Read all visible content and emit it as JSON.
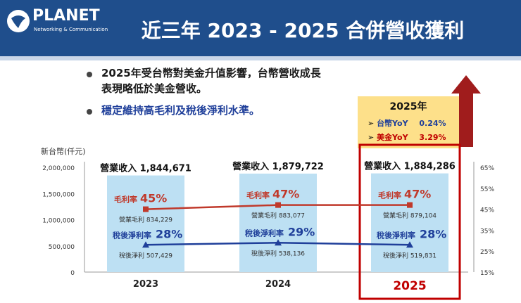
{
  "header": {
    "logo": "PLANET",
    "logo_sub": "Networking & Communication",
    "title": "近三年 2023 - 2025 合併營收獲利"
  },
  "bullets": [
    {
      "line1": "2025年受台幣對美金升值影響，台幣營收成長",
      "line2": "表現略低於美金營收。"
    },
    {
      "line1": "穩定維持高毛利及稅後淨利水準。"
    }
  ],
  "box2025": {
    "title": "2025年",
    "rows": [
      {
        "marker": "➢",
        "label": "台幣YoY",
        "value": "0.24%",
        "color": "#1f3f9a"
      },
      {
        "marker": "➢",
        "label": "美金YoY",
        "value": "3.29%",
        "color": "#c00000"
      }
    ]
  },
  "colors": {
    "header": "#1f4e8c",
    "bar": "#bde0f3",
    "gross_line": "#c0392b",
    "net_line": "#1f3f9a",
    "highlight": "#c00000",
    "box": "#fde08a"
  },
  "chart_data": {
    "type": "bar",
    "y_unit_label": "新台幣(仟元)",
    "categories": [
      "2023",
      "2024",
      "2025"
    ],
    "ylim": [
      0,
      2000000
    ],
    "y_ticks": [
      "2,000,000",
      "1,500,000",
      "1,000,000",
      "500,000",
      "0"
    ],
    "y2lim": [
      15,
      65
    ],
    "y2_ticks": [
      "65%",
      "55%",
      "45%",
      "35%",
      "25%",
      "15%"
    ],
    "revenue": {
      "label": "營業收入",
      "values": [
        1844671,
        1879722,
        1884286
      ],
      "labels": [
        "1,844,671",
        "1,879,722",
        "1,884,286"
      ]
    },
    "gross_margin": {
      "label": "毛利率",
      "pct": [
        45,
        47,
        47
      ],
      "pct_labels": [
        "45%",
        "47%",
        "47%"
      ],
      "amount_label": "營業毛利",
      "amounts": [
        "834,229",
        "883,077",
        "879,104"
      ]
    },
    "net_margin": {
      "label": "稅後淨利率",
      "pct": [
        28,
        29,
        28
      ],
      "pct_labels": [
        "28%",
        "29%",
        "28%"
      ],
      "amount_label": "稅後淨利",
      "amounts": [
        "507,429",
        "538,136",
        "519,831"
      ]
    },
    "highlight_category": "2025",
    "grid": false
  }
}
